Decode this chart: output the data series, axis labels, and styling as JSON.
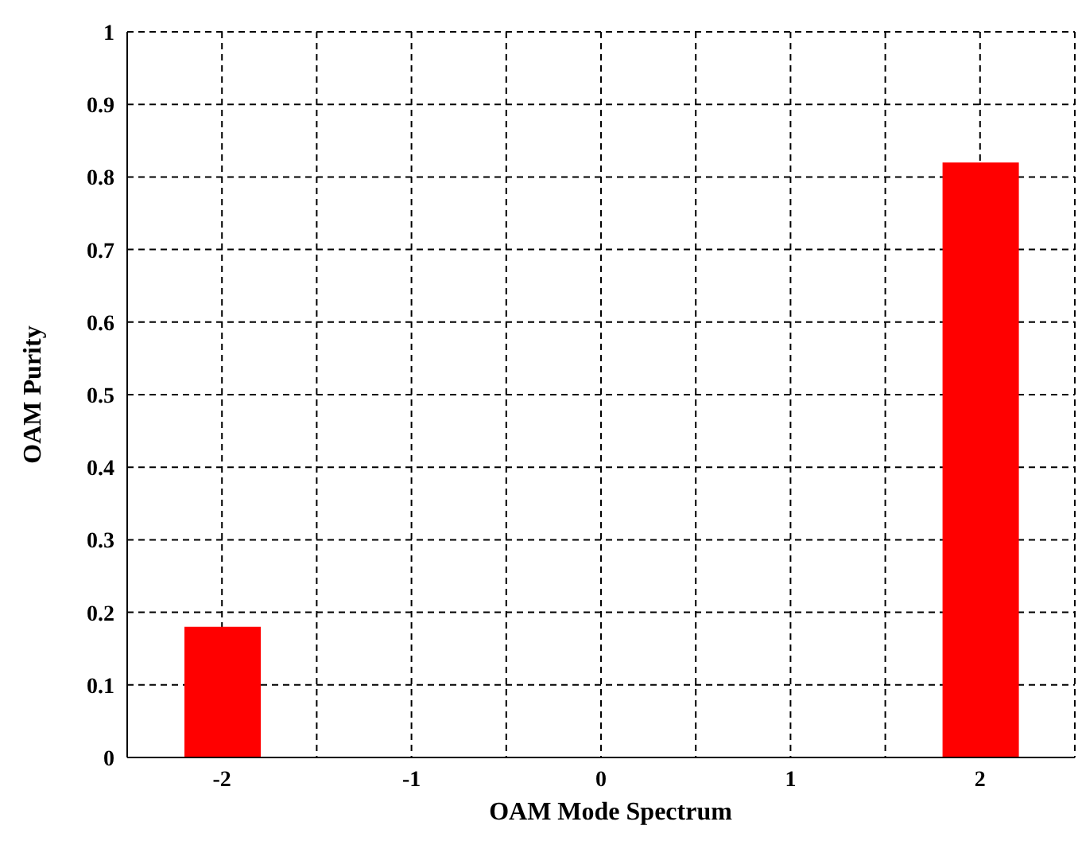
{
  "chart_data": {
    "type": "bar",
    "xlabel": "OAM Mode Spectrum",
    "ylabel": "OAM Purity",
    "x": [
      -2,
      -1,
      0,
      1,
      2
    ],
    "values": [
      0.18,
      0,
      0,
      0,
      0.82
    ],
    "color": "#ff0000",
    "xlim": [
      -2.5,
      2.5
    ],
    "xticks": [
      {
        "value": -2.5,
        "label": null
      },
      -2,
      {
        "value": -1.5,
        "label": null
      },
      -1,
      {
        "value": -0.5,
        "label": null
      },
      0,
      {
        "value": 0.5,
        "label": null
      },
      1,
      {
        "value": 1.5,
        "label": null
      },
      2,
      {
        "value": 2.5,
        "label": null
      }
    ],
    "ylim": [
      0,
      1
    ],
    "yticks": [
      0,
      0.1,
      0.2,
      0.3,
      0.4,
      0.5,
      0.6,
      0.7,
      0.8,
      0.9,
      1
    ],
    "grid": true,
    "legend": false
  }
}
